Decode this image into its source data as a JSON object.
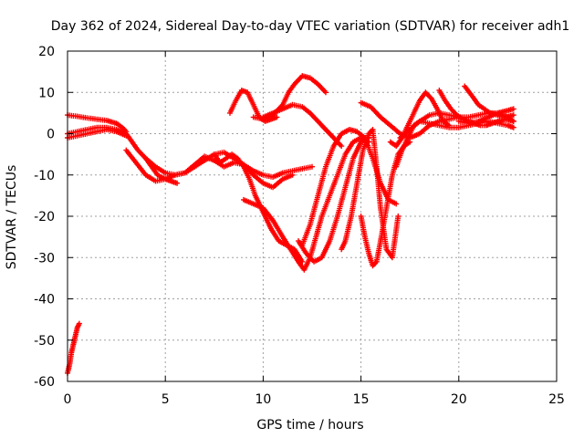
{
  "chart_data": {
    "type": "scatter",
    "title": "Day 362 of 2024, Sidereal Day-to-day VTEC variation (SDTVAR) for receiver adh1",
    "xlabel": "GPS time / hours",
    "ylabel": "SDTVAR / TECUs",
    "xlim": [
      0,
      25
    ],
    "ylim": [
      -60,
      20
    ],
    "xticks": [
      0,
      5,
      10,
      15,
      20,
      25
    ],
    "yticks": [
      -60,
      -50,
      -40,
      -30,
      -20,
      -10,
      0,
      10,
      20
    ],
    "grid": true,
    "marker": "+",
    "color": "#ff0000",
    "series": [
      {
        "name": "s1",
        "x": [
          0.0,
          0.1,
          0.2,
          0.3,
          0.4,
          0.5,
          0.6
        ],
        "y": [
          -58,
          -56,
          -53,
          -51,
          -49,
          -47,
          -46
        ]
      },
      {
        "name": "s2",
        "x": [
          0.0,
          0.5,
          1.0,
          1.5,
          2.0,
          2.5,
          2.8,
          3.0
        ],
        "y": [
          4.5,
          4.2,
          3.8,
          3.5,
          3.2,
          2.5,
          1.5,
          0.5
        ]
      },
      {
        "name": "s3",
        "x": [
          0.0,
          0.5,
          1.0,
          1.5,
          2.0,
          2.5,
          3.0
        ],
        "y": [
          -1,
          -0.5,
          0,
          0.5,
          1,
          0.5,
          -0.5
        ]
      },
      {
        "name": "s4",
        "x": [
          0.0,
          0.5,
          1.0,
          1.5,
          2.0,
          2.5,
          3.0,
          3.3,
          3.6,
          4.0,
          4.3,
          4.6,
          5.0,
          5.3,
          5.6
        ],
        "y": [
          0,
          0.5,
          1,
          1.5,
          1.5,
          1,
          0,
          -2,
          -4,
          -6,
          -8,
          -10,
          -11,
          -11.5,
          -12
        ]
      },
      {
        "name": "s5",
        "x": [
          3.0,
          3.5,
          4.0,
          4.5,
          5.0,
          5.5,
          6.0,
          6.5,
          7.0,
          7.5,
          8.0,
          8.5,
          9.0,
          9.5,
          10.0,
          10.5,
          11.0,
          11.5,
          12.0,
          12.5
        ],
        "y": [
          -4,
          -7,
          -10,
          -11.5,
          -11,
          -10,
          -9.5,
          -7.5,
          -5.5,
          -6.5,
          -8,
          -7,
          -7.5,
          -9,
          -10,
          -10.5,
          -9.5,
          -9,
          -8.5,
          -8
        ]
      },
      {
        "name": "s6",
        "x": [
          4.0,
          4.5,
          5.0,
          5.5,
          6.0,
          6.5,
          7.0,
          7.5,
          8.0,
          8.5,
          9.0,
          9.5,
          10.0,
          10.5,
          11.0,
          11.5
        ],
        "y": [
          -6,
          -8,
          -9.5,
          -10,
          -9.5,
          -8,
          -6.5,
          -5,
          -4.5,
          -6,
          -7.5,
          -10,
          -12,
          -13,
          -11,
          -10
        ]
      },
      {
        "name": "s7",
        "x": [
          8.3,
          8.6,
          8.9,
          9.2,
          9.5,
          9.8,
          10.1,
          10.4,
          10.7
        ],
        "y": [
          5,
          8,
          10.5,
          10,
          7,
          4,
          3,
          3.5,
          4
        ]
      },
      {
        "name": "s8",
        "x": [
          9.5,
          10.0,
          10.5,
          11.0,
          11.3,
          11.6,
          12.0,
          12.4,
          12.8,
          13.2
        ],
        "y": [
          4,
          3.5,
          4.5,
          7,
          10,
          12,
          14,
          13.5,
          12,
          10
        ]
      },
      {
        "name": "s9",
        "x": [
          10.0,
          10.5,
          11.0,
          11.5,
          12.0,
          12.4,
          12.8,
          13.2,
          13.6,
          14.0
        ],
        "y": [
          4,
          5,
          6,
          7,
          6.5,
          5,
          3,
          1,
          -1,
          -3
        ]
      },
      {
        "name": "s10",
        "x": [
          7.5,
          7.8,
          8.1,
          8.4,
          8.7,
          9.0,
          9.3,
          9.6,
          10.0,
          10.4,
          10.8,
          11.2,
          11.6,
          12.0
        ],
        "y": [
          -5,
          -7,
          -6,
          -5,
          -6,
          -8,
          -11,
          -15,
          -19,
          -23,
          -26,
          -27,
          -28,
          -31
        ]
      },
      {
        "name": "s11",
        "x": [
          9.0,
          9.5,
          10.0,
          10.5,
          11.0,
          11.4,
          11.8,
          12.1,
          12.4,
          12.7,
          13.0,
          13.4,
          13.8,
          14.2,
          14.6,
          15.0,
          15.4
        ],
        "y": [
          -16,
          -17,
          -18,
          -21,
          -25,
          -28,
          -31,
          -33,
          -30,
          -25,
          -20,
          -15,
          -10,
          -5,
          -2,
          -1,
          -2
        ]
      },
      {
        "name": "s12",
        "x": [
          11.8,
          12.2,
          12.6,
          13.0,
          13.4,
          13.8,
          14.2,
          14.6,
          15.0,
          15.4
        ],
        "y": [
          -26,
          -29,
          -31,
          -30,
          -26,
          -20,
          -13,
          -6,
          -2,
          -1
        ]
      },
      {
        "name": "s13",
        "x": [
          12.0,
          12.4,
          12.8,
          13.2,
          13.6,
          14.0,
          14.4,
          14.8,
          15.2,
          15.6,
          16.0,
          16.4,
          16.8
        ],
        "y": [
          -27,
          -22,
          -15,
          -8,
          -3,
          0,
          1,
          0.5,
          -1,
          -6,
          -12,
          -16,
          -17
        ]
      },
      {
        "name": "s14",
        "x": [
          14.0,
          14.2,
          14.5,
          14.8,
          15.1,
          15.4,
          15.6,
          15.8,
          16.0,
          16.3,
          16.6,
          16.9
        ],
        "y": [
          -28,
          -26,
          -20,
          -12,
          -4,
          0,
          1,
          -8,
          -18,
          -28,
          -30,
          -20
        ]
      },
      {
        "name": "s15",
        "x": [
          15.0,
          15.2,
          15.4,
          15.6,
          15.8,
          16.0,
          16.3,
          16.6,
          16.9,
          17.2,
          17.5
        ],
        "y": [
          -20,
          -25,
          -29,
          -32,
          -31,
          -26,
          -18,
          -10,
          -5,
          -3,
          -2
        ]
      },
      {
        "name": "s16",
        "x": [
          15.0,
          15.5,
          16.0,
          16.5,
          17.0,
          17.5,
          18.0,
          18.5,
          19.0,
          19.5,
          20.0
        ],
        "y": [
          7.5,
          6.5,
          4,
          2,
          0,
          -1,
          0,
          2,
          3,
          3.5,
          4
        ]
      },
      {
        "name": "s17",
        "x": [
          16.5,
          16.8,
          17.1,
          17.4,
          17.7,
          18.0,
          18.3,
          18.6,
          18.9,
          19.2,
          19.5
        ],
        "y": [
          -2,
          -3,
          -1,
          2,
          5,
          8,
          10,
          8.5,
          6,
          3,
          2
        ]
      },
      {
        "name": "s18",
        "x": [
          16.8,
          17.1,
          17.4,
          17.7,
          18.0,
          18.5,
          19.0,
          19.5,
          20.0,
          20.5,
          21.0,
          21.5,
          22.0,
          22.5,
          22.8
        ],
        "y": [
          -8,
          -4,
          -1,
          2,
          3,
          2.5,
          2,
          1.5,
          1.5,
          2,
          2.5,
          3,
          2.5,
          2,
          1.5
        ]
      },
      {
        "name": "s19",
        "x": [
          17.0,
          17.5,
          18.0,
          18.5,
          19.0,
          19.5,
          20.0,
          20.5,
          21.0,
          21.5,
          22.0,
          22.5,
          22.8
        ],
        "y": [
          -1,
          1,
          3,
          4.5,
          5,
          4.5,
          4,
          4,
          4.5,
          5,
          5,
          4,
          3
        ]
      },
      {
        "name": "s20",
        "x": [
          19.0,
          19.3,
          19.6,
          19.9,
          20.2,
          20.5,
          20.8,
          21.1,
          21.4,
          21.7,
          22.0,
          22.4,
          22.8
        ],
        "y": [
          10.5,
          8,
          6,
          4.5,
          3.5,
          3,
          2.5,
          2,
          2,
          2.5,
          3,
          3.5,
          3
        ]
      },
      {
        "name": "s21",
        "x": [
          20.3,
          20.7,
          21.0,
          21.3,
          21.6,
          22.0,
          22.4,
          22.8
        ],
        "y": [
          11.5,
          9,
          7,
          6,
          5,
          4.5,
          4,
          4.5
        ]
      },
      {
        "name": "s22",
        "x": [
          20.0,
          20.5,
          21.0,
          21.5,
          22.0,
          22.4,
          22.8
        ],
        "y": [
          3,
          2.5,
          3,
          4,
          5,
          5.5,
          6
        ]
      }
    ]
  }
}
